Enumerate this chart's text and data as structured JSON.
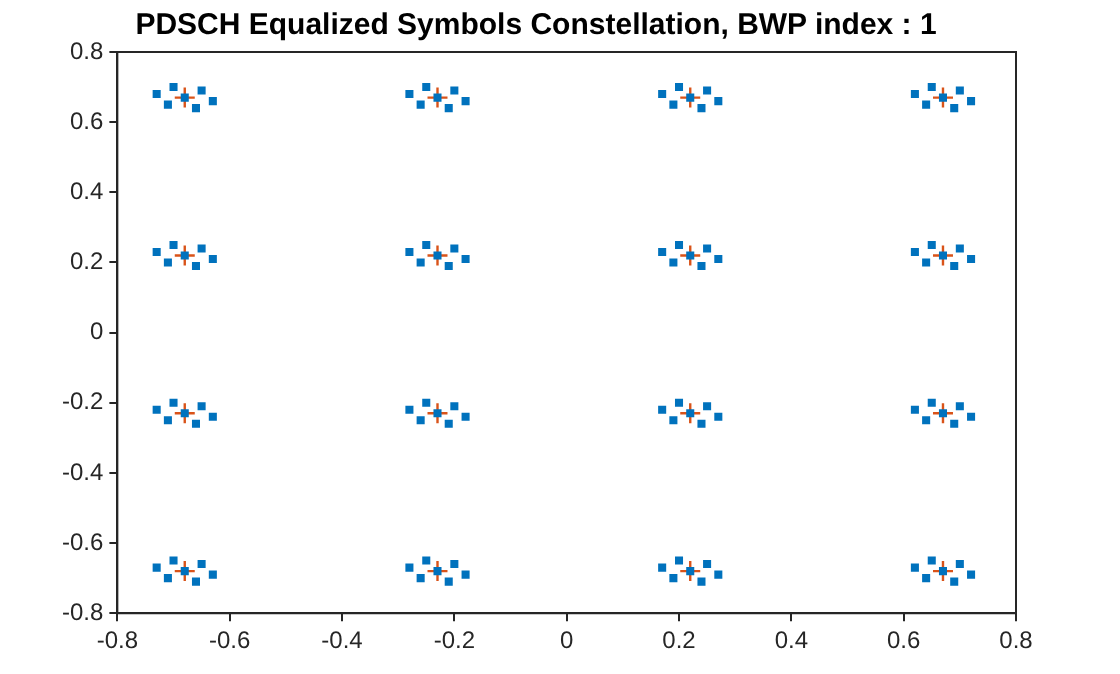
{
  "chart_data": {
    "type": "scatter",
    "title": "PDSCH Equalized Symbols Constellation, BWP index : 1",
    "xlim": [
      -0.8,
      0.8
    ],
    "xticks": [
      -0.8,
      -0.6,
      -0.4,
      -0.2,
      0,
      0.2,
      0.4,
      0.6,
      0.8
    ],
    "ylim": [
      -0.8,
      0.8
    ],
    "yticks": [
      -0.8,
      -0.6,
      -0.4,
      -0.2,
      0,
      0.2,
      0.4,
      0.6,
      0.8
    ],
    "grid": false,
    "legend": false,
    "series": [
      {
        "color": "#0072bd",
        "marker": "square",
        "x": [
          -0.68,
          -0.73,
          -0.63,
          -0.7,
          -0.66,
          -0.65,
          -0.71,
          -0.23,
          -0.28,
          -0.18,
          -0.25,
          -0.21,
          -0.2,
          -0.26,
          0.22,
          0.17,
          0.27,
          0.2,
          0.24,
          0.25,
          0.19,
          0.67,
          0.62,
          0.72,
          0.65,
          0.69,
          0.7,
          0.64,
          -0.68,
          -0.73,
          -0.63,
          -0.7,
          -0.66,
          -0.65,
          -0.71,
          -0.23,
          -0.28,
          -0.18,
          -0.25,
          -0.21,
          -0.2,
          -0.26,
          0.22,
          0.17,
          0.27,
          0.2,
          0.24,
          0.25,
          0.19,
          0.67,
          0.62,
          0.72,
          0.65,
          0.69,
          0.7,
          0.64,
          -0.68,
          -0.73,
          -0.63,
          -0.7,
          -0.66,
          -0.65,
          -0.71,
          -0.23,
          -0.28,
          -0.18,
          -0.25,
          -0.21,
          -0.2,
          -0.26,
          0.22,
          0.17,
          0.27,
          0.2,
          0.24,
          0.25,
          0.19,
          0.67,
          0.62,
          0.72,
          0.65,
          0.69,
          0.7,
          0.64,
          -0.68,
          -0.73,
          -0.63,
          -0.7,
          -0.66,
          -0.65,
          -0.71,
          -0.23,
          -0.28,
          -0.18,
          -0.25,
          -0.21,
          -0.2,
          -0.26,
          0.22,
          0.17,
          0.27,
          0.2,
          0.24,
          0.25,
          0.19,
          0.67,
          0.62,
          0.72,
          0.65,
          0.69,
          0.7,
          0.64
        ],
        "values": [
          0.67,
          0.68,
          0.66,
          0.7,
          0.64,
          0.69,
          0.65,
          0.67,
          0.68,
          0.66,
          0.7,
          0.64,
          0.69,
          0.65,
          0.67,
          0.68,
          0.66,
          0.7,
          0.64,
          0.69,
          0.65,
          0.67,
          0.68,
          0.66,
          0.7,
          0.64,
          0.69,
          0.65,
          0.22,
          0.23,
          0.21,
          0.25,
          0.19,
          0.24,
          0.2,
          0.22,
          0.23,
          0.21,
          0.25,
          0.19,
          0.24,
          0.2,
          0.22,
          0.23,
          0.21,
          0.25,
          0.19,
          0.24,
          0.2,
          0.22,
          0.23,
          0.21,
          0.25,
          0.19,
          0.24,
          0.2,
          -0.23,
          -0.22,
          -0.24,
          -0.2,
          -0.26,
          -0.21,
          -0.25,
          -0.23,
          -0.22,
          -0.24,
          -0.2,
          -0.26,
          -0.21,
          -0.25,
          -0.23,
          -0.22,
          -0.24,
          -0.2,
          -0.26,
          -0.21,
          -0.25,
          -0.23,
          -0.22,
          -0.24,
          -0.2,
          -0.26,
          -0.21,
          -0.25,
          -0.68,
          -0.67,
          -0.69,
          -0.65,
          -0.71,
          -0.66,
          -0.7,
          -0.68,
          -0.67,
          -0.69,
          -0.65,
          -0.71,
          -0.66,
          -0.7,
          -0.68,
          -0.67,
          -0.69,
          -0.65,
          -0.71,
          -0.66,
          -0.7,
          -0.68,
          -0.67,
          -0.69,
          -0.65,
          -0.71,
          -0.66,
          -0.7
        ]
      },
      {
        "color": "#d95319",
        "marker": "cross",
        "x": [
          -0.68,
          -0.23,
          0.22,
          0.67,
          -0.68,
          -0.23,
          0.22,
          0.67,
          -0.68,
          -0.23,
          0.22,
          0.67,
          -0.68,
          -0.23,
          0.22,
          0.67
        ],
        "values": [
          0.67,
          0.67,
          0.67,
          0.67,
          0.22,
          0.22,
          0.22,
          0.22,
          -0.23,
          -0.23,
          -0.23,
          -0.23,
          -0.68,
          -0.68,
          -0.68,
          -0.68
        ]
      }
    ]
  }
}
